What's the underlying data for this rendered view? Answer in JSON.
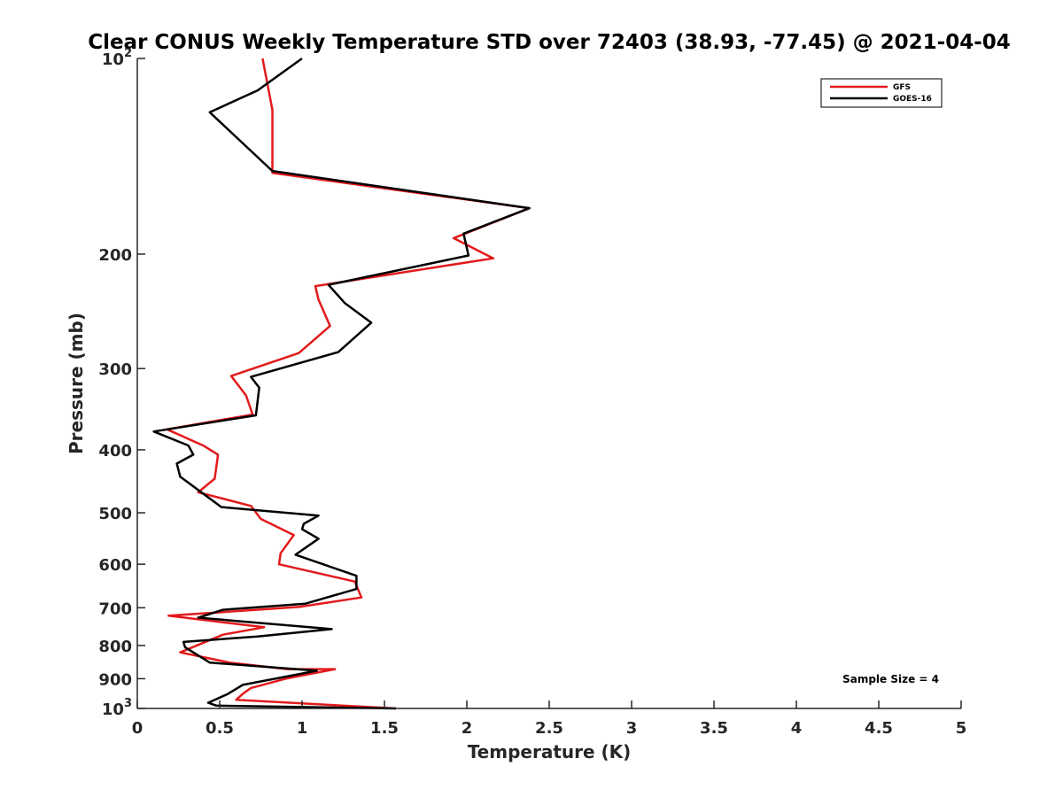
{
  "chart_data": {
    "type": "line",
    "title": "Clear CONUS Weekly Temperature STD over 72403 (38.93, -77.45) @ 2021-04-04",
    "xlabel": "Temperature (K)",
    "ylabel": "Pressure (mb)",
    "xlim": [
      0,
      5
    ],
    "ylim": [
      100,
      1000
    ],
    "y_scale": "log",
    "y_reversed": true,
    "grid": false,
    "legend_position": "top-right",
    "x_ticks": [
      {
        "value": 0,
        "label": "0"
      },
      {
        "value": 0.5,
        "label": "0.5"
      },
      {
        "value": 1,
        "label": "1"
      },
      {
        "value": 1.5,
        "label": "1.5"
      },
      {
        "value": 2,
        "label": "2"
      },
      {
        "value": 2.5,
        "label": "2.5"
      },
      {
        "value": 3,
        "label": "3"
      },
      {
        "value": 3.5,
        "label": "3.5"
      },
      {
        "value": 4,
        "label": "4"
      },
      {
        "value": 4.5,
        "label": "4.5"
      },
      {
        "value": 5,
        "label": "5"
      }
    ],
    "y_ticks": [
      {
        "value": 100,
        "base": "10",
        "exp": "2"
      },
      {
        "value": 200,
        "base": "200",
        "exp": ""
      },
      {
        "value": 300,
        "base": "300",
        "exp": ""
      },
      {
        "value": 400,
        "base": "400",
        "exp": ""
      },
      {
        "value": 500,
        "base": "500",
        "exp": ""
      },
      {
        "value": 600,
        "base": "600",
        "exp": ""
      },
      {
        "value": 700,
        "base": "700",
        "exp": ""
      },
      {
        "value": 800,
        "base": "800",
        "exp": ""
      },
      {
        "value": 900,
        "base": "900",
        "exp": ""
      },
      {
        "value": 1000,
        "base": "10",
        "exp": "3"
      }
    ],
    "annotation": "Sample Size = 4",
    "series": [
      {
        "name": "GFS",
        "color": "#e31a1c",
        "x": [
          0.76,
          0.82,
          0.82,
          2.38,
          1.92,
          2.16,
          1.08,
          1.1,
          1.17,
          0.98,
          0.57,
          0.66,
          0.7,
          0.18,
          0.4,
          0.49,
          0.47,
          0.37,
          0.69,
          0.75,
          0.95,
          0.87,
          0.86,
          1.32,
          1.36,
          0.98,
          0.19,
          0.77,
          0.52,
          0.26,
          0.56,
          0.91,
          1.2,
          0.9,
          0.69,
          0.64,
          0.6,
          1.57
        ],
        "y": [
          100,
          120,
          150,
          170,
          189,
          203,
          224,
          235,
          258,
          284,
          308,
          330,
          353,
          372,
          394,
          407,
          443,
          465,
          488,
          511,
          541,
          577,
          600,
          638,
          675,
          698,
          720,
          750,
          770,
          820,
          850,
          870,
          870,
          900,
          930,
          950,
          970,
          1000
        ]
      },
      {
        "name": "GOES-16",
        "color": "#000000",
        "x": [
          1.0,
          0.73,
          0.44,
          0.82,
          2.38,
          1.98,
          2.01,
          1.16,
          1.26,
          1.42,
          1.22,
          0.69,
          0.74,
          0.72,
          0.1,
          0.31,
          0.34,
          0.24,
          0.26,
          0.51,
          1.1,
          1.01,
          1.0,
          1.1,
          0.96,
          1.33,
          1.33,
          1.02,
          0.52,
          0.37,
          1.18,
          0.73,
          0.28,
          0.29,
          0.44,
          1.09,
          0.64,
          0.55,
          0.43,
          0.48,
          1.57
        ],
        "y": [
          100,
          112,
          121,
          149,
          170,
          186,
          201,
          223,
          238,
          255,
          283,
          309,
          321,
          354,
          375,
          394,
          407,
          420,
          440,
          490,
          505,
          520,
          530,
          548,
          580,
          625,
          655,
          690,
          705,
          725,
          755,
          775,
          790,
          805,
          850,
          875,
          920,
          950,
          980,
          990,
          1000
        ]
      }
    ]
  }
}
